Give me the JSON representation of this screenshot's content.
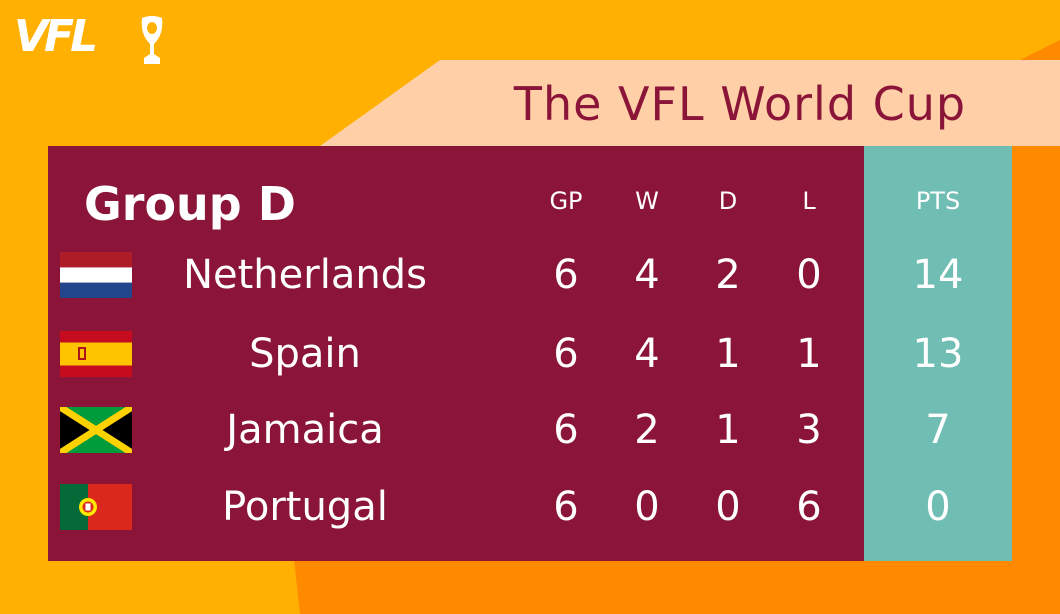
{
  "brand": {
    "logo_text": "VFL"
  },
  "title": "The VFL World Cup",
  "group": "Group D",
  "headers": {
    "gp": "GP",
    "w": "W",
    "d": "D",
    "l": "L",
    "pts": "PTS"
  },
  "teams": [
    {
      "name": "Netherlands",
      "gp": "6",
      "w": "4",
      "d": "2",
      "l": "0",
      "pts": "14",
      "flag": "netherlands-flag"
    },
    {
      "name": "Spain",
      "gp": "6",
      "w": "4",
      "d": "1",
      "l": "1",
      "pts": "13",
      "flag": "spain-flag"
    },
    {
      "name": "Jamaica",
      "gp": "6",
      "w": "2",
      "d": "1",
      "l": "3",
      "pts": "7",
      "flag": "jamaica-flag"
    },
    {
      "name": "Portugal",
      "gp": "6",
      "w": "0",
      "d": "0",
      "l": "6",
      "pts": "0",
      "flag": "portugal-flag"
    }
  ],
  "colors": {
    "background_orange": "#ff8a00",
    "background_yellow": "#ffb000",
    "banner_peach": "#ffd0a8",
    "table_maroon": "#8a1538",
    "pts_teal": "#6fbdb3"
  }
}
